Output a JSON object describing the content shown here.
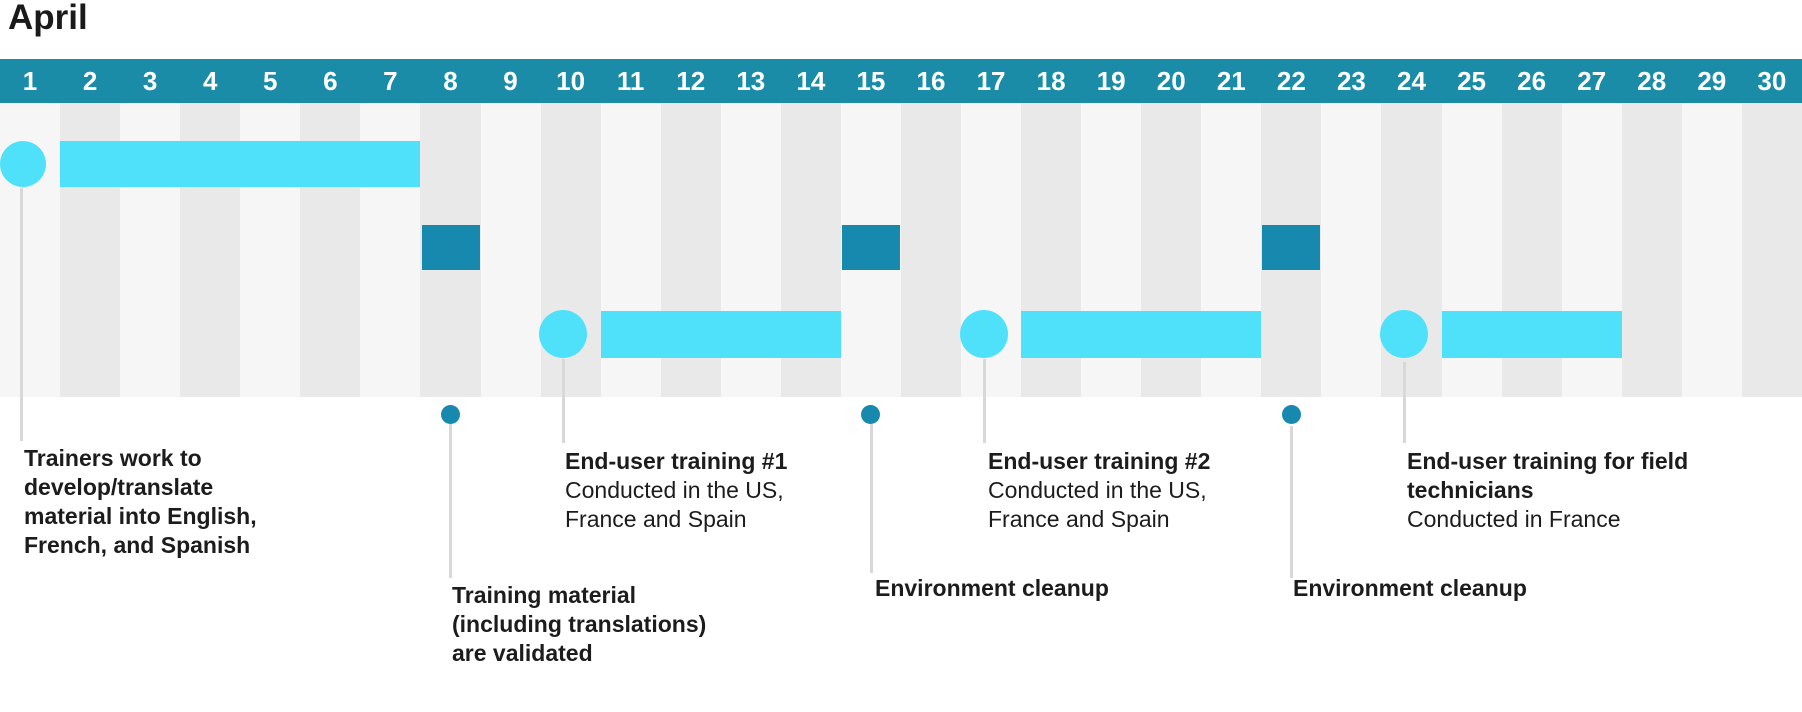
{
  "title": "April",
  "timeline": {
    "days": [
      "1",
      "2",
      "3",
      "4",
      "5",
      "6",
      "7",
      "8",
      "9",
      "10",
      "11",
      "12",
      "13",
      "14",
      "15",
      "16",
      "17",
      "18",
      "19",
      "20",
      "21",
      "22",
      "23",
      "24",
      "25",
      "26",
      "27",
      "28",
      "29",
      "30"
    ]
  },
  "colors": {
    "teal": "#1A8CA8",
    "cyan": "#50E1FA",
    "milestone": "#1789AE",
    "stripe-light": "#F6F6F6",
    "stripe-dark": "#E9E9E9",
    "connector": "#D8D8D8",
    "text": "#1C1C1C"
  },
  "annotations": {
    "a1": {
      "l1": "Trainers work to",
      "l2": "develop/translate",
      "l3": "material into English,",
      "l4": "French, and Spanish"
    },
    "a2": {
      "l1": "Training material",
      "l2": "(including translations)",
      "l3": "are validated"
    },
    "a3": {
      "title": "End-user training #1",
      "s1": "Conducted in the US,",
      "s2": "France and Spain"
    },
    "a4": {
      "title": "Environment cleanup"
    },
    "a5": {
      "title": "End-user training #2",
      "s1": "Conducted in the US,",
      "s2": "France and Spain"
    },
    "a6": {
      "title": "Environment cleanup"
    },
    "a7": {
      "t1": "End-user training for field",
      "t2": "technicians",
      "s1": "Conducted in France"
    }
  },
  "chart_data": {
    "type": "gantt",
    "title": "April",
    "x_axis": {
      "unit": "day of month",
      "ticks": [
        1,
        2,
        3,
        4,
        5,
        6,
        7,
        8,
        9,
        10,
        11,
        12,
        13,
        14,
        15,
        16,
        17,
        18,
        19,
        20,
        21,
        22,
        23,
        24,
        25,
        26,
        27,
        28,
        29,
        30
      ]
    },
    "tasks": [
      {
        "name": "Trainers work to develop/translate material into English, French, and Spanish",
        "circle_day": 1,
        "bar_start_day": 2,
        "bar_end_day": 7,
        "lane": "top"
      },
      {
        "name": "End-user training #1 — Conducted in the US, France and Spain",
        "circle_day": 10,
        "bar_start_day": 11,
        "bar_end_day": 14,
        "lane": "bottom"
      },
      {
        "name": "End-user training #2 — Conducted in the US, France and Spain",
        "circle_day": 17,
        "bar_start_day": 18,
        "bar_end_day": 21,
        "lane": "bottom"
      },
      {
        "name": "End-user training for field technicians — Conducted in France",
        "circle_day": 24,
        "bar_start_day": 25,
        "bar_end_day": 27,
        "lane": "bottom"
      }
    ],
    "milestones": [
      {
        "name": "Training material (including translations) are validated",
        "day": 8
      },
      {
        "name": "Environment cleanup",
        "day": 15
      },
      {
        "name": "Environment cleanup",
        "day": 22
      }
    ],
    "legend": "off",
    "grid": "alternating vertical day stripes"
  }
}
